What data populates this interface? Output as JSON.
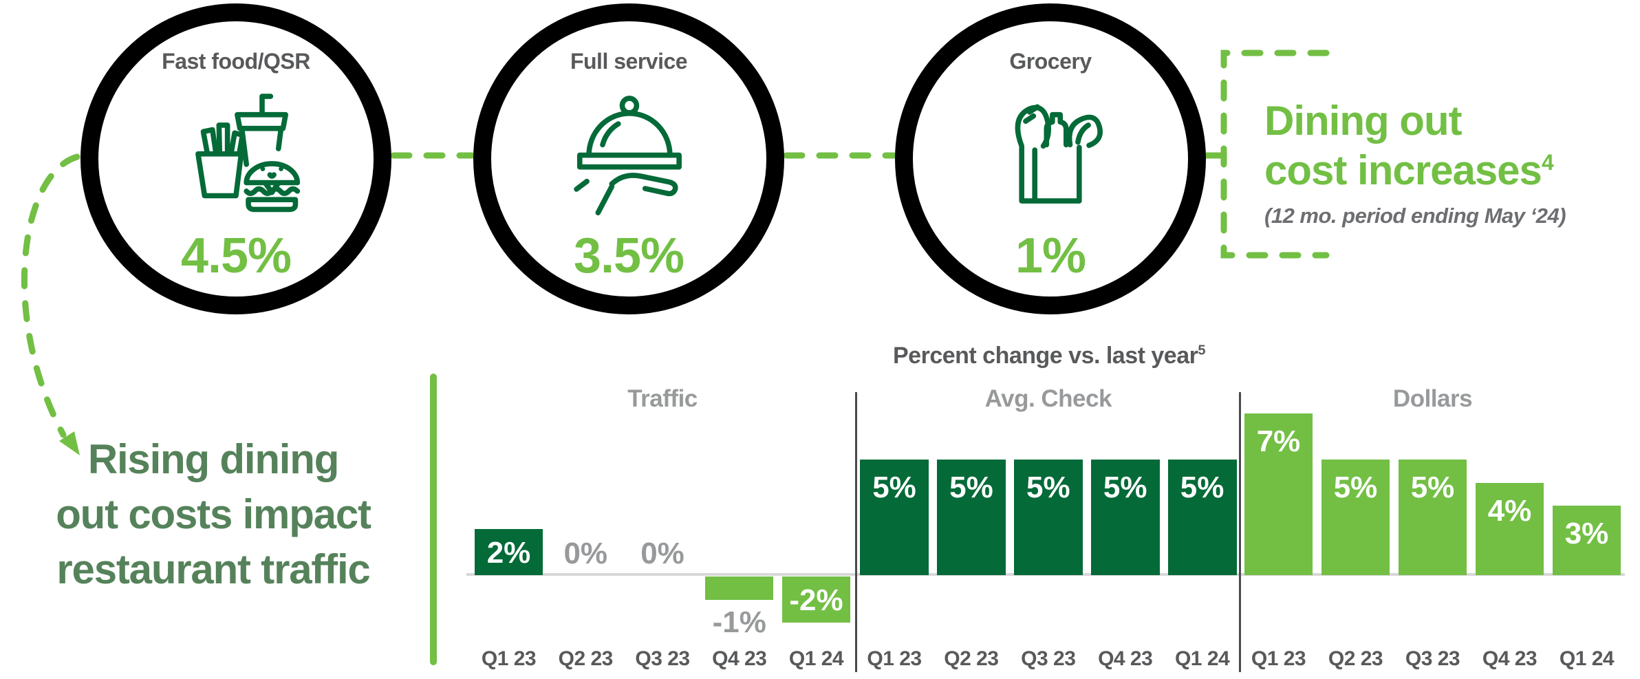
{
  "palette": {
    "bright_green": "#72BF44",
    "dark_green": "#046A38",
    "headline_green": "#55825A",
    "dark_gray": "#58595B",
    "mid_gray": "#97999B",
    "subtitle_gray": "#6D6E71",
    "baseline_gray": "#D8D8D8",
    "ring_black": "#000000"
  },
  "cost_increase_circles": [
    {
      "label": "Fast food/QSR",
      "value": "4.5%",
      "icon": "fast-food-icon"
    },
    {
      "label": "Full service",
      "value": "3.5%",
      "icon": "cloche-hand-icon"
    },
    {
      "label": "Grocery",
      "value": "1%",
      "icon": "grocery-bag-icon"
    }
  ],
  "callout": {
    "line1": "Dining out",
    "line2": "cost increases",
    "footnote_superscript": "4",
    "subtitle": "(12 mo. period ending May ‘24)"
  },
  "headline": {
    "line1": "Rising dining",
    "line2": "out costs impact",
    "line3": "restaurant traffic"
  },
  "chart_data": {
    "type": "bar",
    "title": "Percent change vs. last year",
    "title_superscript": "5",
    "unit": "percent",
    "categories": [
      "Q1 23",
      "Q2 23",
      "Q3 23",
      "Q4 23",
      "Q1 24"
    ],
    "series": [
      {
        "name": "Traffic",
        "values": [
          2,
          0,
          0,
          -1,
          -2
        ]
      },
      {
        "name": "Avg. Check",
        "values": [
          5,
          5,
          5,
          5,
          5
        ]
      },
      {
        "name": "Dollars",
        "values": [
          7,
          5,
          5,
          4,
          3
        ]
      }
    ],
    "ylim": [
      -3,
      8
    ],
    "gridlines": false,
    "legend": "none",
    "bar_color_rules": {
      "Traffic": "dark green when positive, bright green when negative",
      "Avg. Check": "dark green",
      "Dollars": "bright green"
    }
  }
}
